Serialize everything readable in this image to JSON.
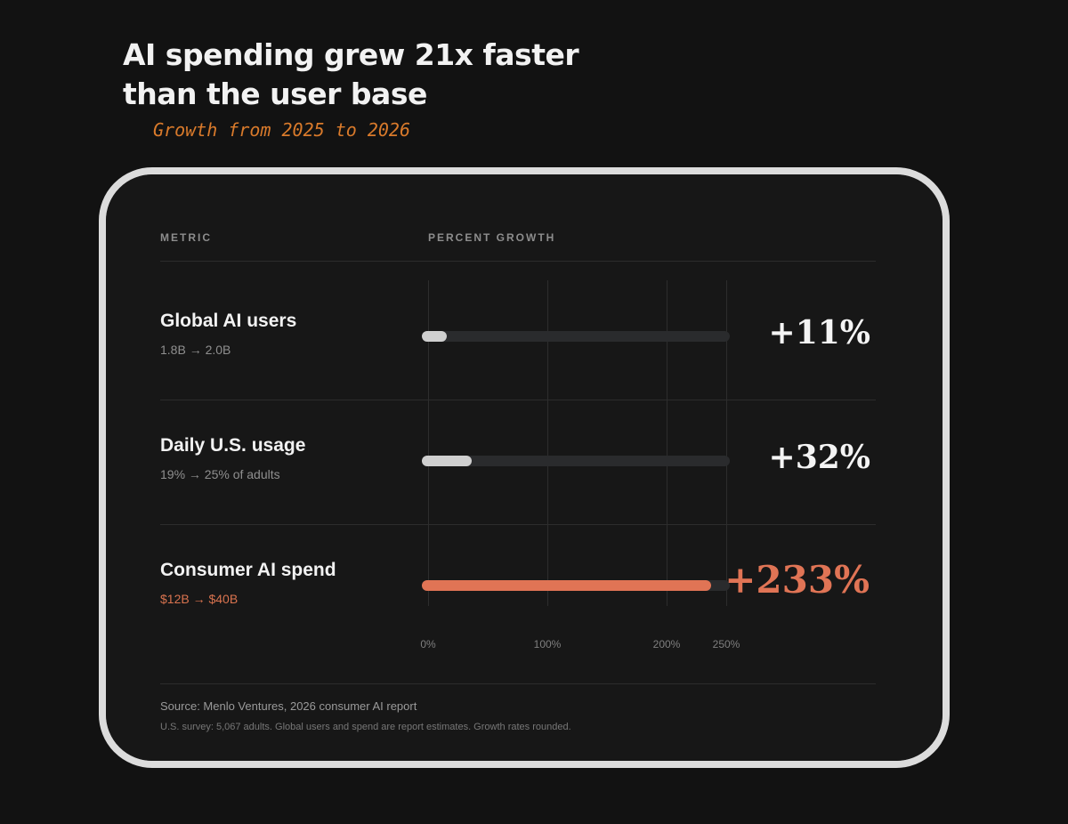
{
  "title_line1": "AI spending grew 21x faster",
  "title_line2": "than the user base",
  "subtitle": "Growth from 2025 to 2026",
  "table": {
    "metric_header": "METRIC",
    "growth_header": "PERCENT GROWTH"
  },
  "colors": {
    "accent": "#e07455",
    "neutral_bar": "#cfcfcf",
    "track": "#2a2b2d",
    "subtitle": "#d97a2b"
  },
  "chart_data": {
    "type": "bar",
    "orientation": "horizontal",
    "categories": [
      "Global AI users",
      "Daily U.S. usage",
      "Consumer AI spend"
    ],
    "category_details": [
      "1.8B → 2.0B",
      "19% → 25% of adults",
      "$12B → $40B"
    ],
    "values": [
      11,
      32,
      233
    ],
    "value_labels": [
      "+11%",
      "+32%",
      "+233%"
    ],
    "highlighted": [
      false,
      false,
      true
    ],
    "xlim": [
      0,
      250
    ],
    "x_ticks": [
      0,
      100,
      200,
      250
    ],
    "x_tick_labels": [
      "0%",
      "100%",
      "200%",
      "250%"
    ],
    "grid": true
  },
  "footer": {
    "source": "Source: Menlo Ventures, 2026 consumer AI report",
    "note": "U.S. survey: 5,067 adults. Global users and spend are report estimates. Growth rates rounded."
  }
}
